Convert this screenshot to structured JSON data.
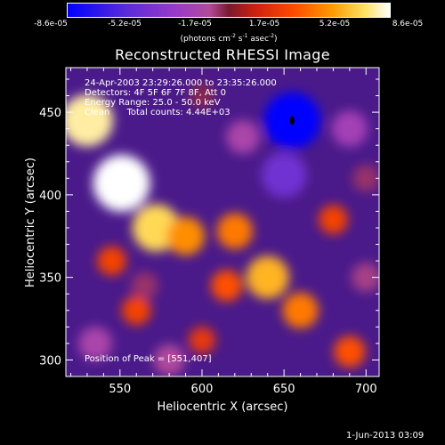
{
  "colorbar": {
    "ticks": [
      "-8.6e-05",
      "-5.2e-05",
      "-1.7e-05",
      "1.7e-05",
      "5.2e-05",
      "8.6e-05"
    ],
    "units": "(photons cm",
    "units_exp1": "-2",
    "units_mid": " s",
    "units_exp2": "-1",
    "units_end": " asec",
    "units_exp3": "-2",
    "units_close": ")",
    "colors": [
      "#0000ff",
      "#5a2bd8",
      "#9a3bc9",
      "#b24a9a",
      "#7a1830",
      "#cc2010",
      "#ff4a00",
      "#ff9a00",
      "#ffe060",
      "#ffffff"
    ]
  },
  "annotations": {
    "time_range": "24-Apr-2003 23:29:26.000 to 23:35:26.000",
    "detectors": "Detectors: 4F 5F 6F 7F 8F, Att 0",
    "energy": "Energy Range: 25.0 - 50.0 keV",
    "clean": "Clean      Total counts: 4.44E+03",
    "peak": "Position of Peak = [551,407]"
  },
  "footer": {
    "timestamp": "1-Jun-2013 03:09"
  },
  "chart_data": {
    "type": "heatmap",
    "title": "Reconstructed RHESSI Image",
    "xlabel": "Heliocentric X (arcsec)",
    "ylabel": "Heliocentric Y (arcsec)",
    "xlim": [
      517,
      708
    ],
    "ylim": [
      290,
      477
    ],
    "xticks": [
      550,
      600,
      650,
      700
    ],
    "yticks": [
      300,
      350,
      400,
      450
    ],
    "colorbar_range": [
      -8.6e-05,
      8.6e-05
    ],
    "peak_position": [
      551,
      407
    ],
    "features": [
      {
        "x": 530,
        "y": 445,
        "value": 7.5e-05
      },
      {
        "x": 551,
        "y": 407,
        "value": 8.6e-05
      },
      {
        "x": 572,
        "y": 380,
        "value": 6.5e-05
      },
      {
        "x": 590,
        "y": 375,
        "value": 4.5e-05
      },
      {
        "x": 620,
        "y": 378,
        "value": 4e-05
      },
      {
        "x": 640,
        "y": 350,
        "value": 5.5e-05
      },
      {
        "x": 660,
        "y": 330,
        "value": 4e-05
      },
      {
        "x": 615,
        "y": 345,
        "value": 3e-05
      },
      {
        "x": 560,
        "y": 330,
        "value": 2.5e-05
      },
      {
        "x": 545,
        "y": 360,
        "value": 2.5e-05
      },
      {
        "x": 690,
        "y": 305,
        "value": 3e-05
      },
      {
        "x": 680,
        "y": 385,
        "value": 2.5e-05
      },
      {
        "x": 600,
        "y": 312,
        "value": 2e-05
      },
      {
        "x": 655,
        "y": 445,
        "value": -8.6e-05
      },
      {
        "x": 650,
        "y": 412,
        "value": -6e-05
      },
      {
        "x": 690,
        "y": 440,
        "value": -4e-05
      },
      {
        "x": 625,
        "y": 435,
        "value": -3.5e-05
      },
      {
        "x": 535,
        "y": 310,
        "value": -3.5e-05
      },
      {
        "x": 580,
        "y": 300,
        "value": -3e-05
      },
      {
        "x": 700,
        "y": 350,
        "value": -2.5e-05
      },
      {
        "x": 565,
        "y": 345,
        "value": -2e-05
      },
      {
        "x": 600,
        "y": 460,
        "value": -1.5e-05
      },
      {
        "x": 700,
        "y": 410,
        "value": -2e-05
      }
    ]
  }
}
